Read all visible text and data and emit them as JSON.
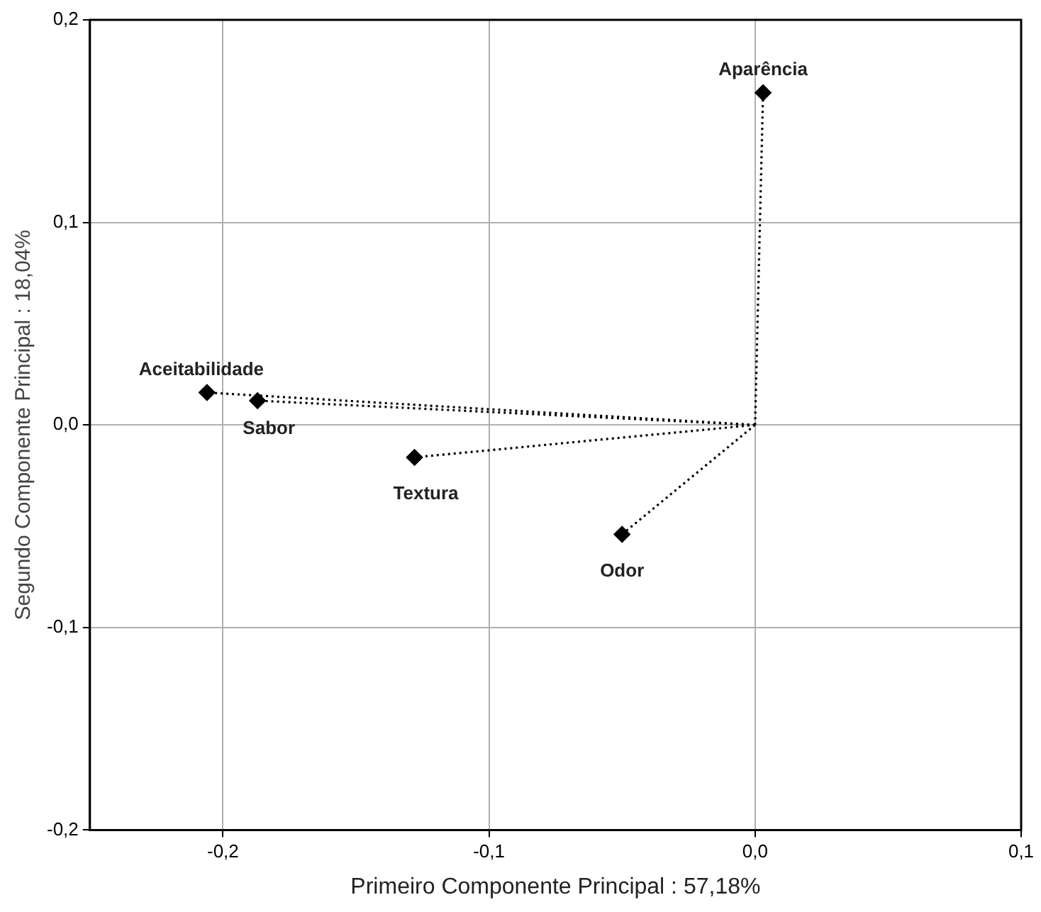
{
  "chart_data": {
    "type": "line",
    "xlabel": "Primeiro Componente Principal : 57,18%",
    "ylabel": "Segundo Componente Principal : 18,04%",
    "series": [
      {
        "name": "Aparência",
        "color": "#000000",
        "x": [
          0,
          0.003
        ],
        "values": [
          0,
          0.164
        ]
      },
      {
        "name": "Aceitabilidade",
        "color": "#000000",
        "x": [
          0,
          -0.206
        ],
        "values": [
          0,
          0.016
        ]
      },
      {
        "name": "Sabor",
        "color": "#000000",
        "x": [
          0,
          -0.187
        ],
        "values": [
          0,
          0.012
        ]
      },
      {
        "name": "Textura",
        "color": "#000000",
        "x": [
          0,
          -0.128
        ],
        "values": [
          0,
          -0.016
        ]
      },
      {
        "name": "Odor",
        "color": "#000000",
        "x": [
          0,
          -0.05
        ],
        "values": [
          0,
          -0.054
        ]
      }
    ],
    "xlim": [
      -0.25,
      0.1
    ],
    "xticks": [
      {
        "value": -0.2,
        "label": "-0,2"
      },
      {
        "value": -0.1,
        "label": "-0,1"
      },
      {
        "value": 0,
        "label": "0,0"
      },
      {
        "value": 0.1,
        "label": "0,1"
      }
    ],
    "ylim": [
      -0.2,
      0.2
    ],
    "yticks": [
      {
        "value": -0.2,
        "label": "-0,2"
      },
      {
        "value": -0.1,
        "label": "-0,1"
      },
      {
        "value": 0,
        "label": "0,0"
      },
      {
        "value": 0.1,
        "label": "0,1"
      },
      {
        "value": 0.2,
        "label": "0,2"
      }
    ],
    "grid": true,
    "marker": "diamond",
    "line_style": "dotted",
    "legend": false
  }
}
